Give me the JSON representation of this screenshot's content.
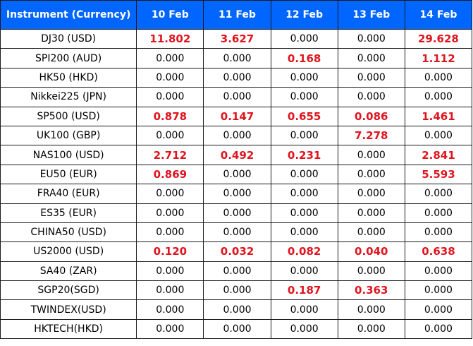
{
  "colors": {
    "header_bg": "#0066ff",
    "header_text": "#ffffff",
    "highlight": "#e0141e",
    "normal_text": "#000000"
  },
  "table": {
    "headers": [
      "Instrument (Currency)",
      "10 Feb",
      "11 Feb",
      "12 Feb",
      "13 Feb",
      "14 Feb"
    ],
    "rows": [
      {
        "name": "DJ30 (USD)",
        "values": [
          "11.802",
          "3.627",
          "0.000",
          "0.000",
          "29.628"
        ]
      },
      {
        "name": "SPI200 (AUD)",
        "values": [
          "0.000",
          "0.000",
          "0.168",
          "0.000",
          "1.112"
        ]
      },
      {
        "name": "HK50 (HKD)",
        "values": [
          "0.000",
          "0.000",
          "0.000",
          "0.000",
          "0.000"
        ]
      },
      {
        "name": "Nikkei225 (JPN)",
        "values": [
          "0.000",
          "0.000",
          "0.000",
          "0.000",
          "0.000"
        ]
      },
      {
        "name": "SP500 (USD)",
        "values": [
          "0.878",
          "0.147",
          "0.655",
          "0.086",
          "1.461"
        ]
      },
      {
        "name": "UK100 (GBP)",
        "values": [
          "0.000",
          "0.000",
          "0.000",
          "7.278",
          "0.000"
        ]
      },
      {
        "name": "NAS100 (USD)",
        "values": [
          "2.712",
          "0.492",
          "0.231",
          "0.000",
          "2.841"
        ]
      },
      {
        "name": "EU50 (EUR)",
        "values": [
          "0.869",
          "0.000",
          "0.000",
          "0.000",
          "5.593"
        ]
      },
      {
        "name": "FRA40 (EUR)",
        "values": [
          "0.000",
          "0.000",
          "0.000",
          "0.000",
          "0.000"
        ]
      },
      {
        "name": "ES35 (EUR)",
        "values": [
          "0.000",
          "0.000",
          "0.000",
          "0.000",
          "0.000"
        ]
      },
      {
        "name": "CHINA50 (USD)",
        "values": [
          "0.000",
          "0.000",
          "0.000",
          "0.000",
          "0.000"
        ]
      },
      {
        "name": "US2000 (USD)",
        "values": [
          "0.120",
          "0.032",
          "0.082",
          "0.040",
          "0.638"
        ]
      },
      {
        "name": "SA40 (ZAR)",
        "values": [
          "0.000",
          "0.000",
          "0.000",
          "0.000",
          "0.000"
        ]
      },
      {
        "name": "SGP20(SGD)",
        "values": [
          "0.000",
          "0.000",
          "0.187",
          "0.363",
          "0.000"
        ]
      },
      {
        "name": "TWINDEX(USD)",
        "values": [
          "0.000",
          "0.000",
          "0.000",
          "0.000",
          "0.000"
        ]
      },
      {
        "name": "HKTECH(HKD)",
        "values": [
          "0.000",
          "0.000",
          "0.000",
          "0.000",
          "0.000"
        ]
      }
    ]
  }
}
